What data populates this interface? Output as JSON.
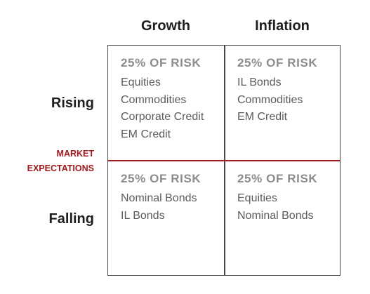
{
  "columns": {
    "growth": "Growth",
    "inflation": "Inflation"
  },
  "rows": {
    "rising": "Rising",
    "falling": "Falling"
  },
  "axis_label": {
    "line1": "MARKET",
    "line2": "EXPECTATIONS"
  },
  "cells": {
    "rising_growth": {
      "heading": "25% OF RISK",
      "items": [
        "Equities",
        "Commodities",
        "Corporate Credit",
        "EM Credit"
      ]
    },
    "rising_inflation": {
      "heading": "25% OF RISK",
      "items": [
        "IL Bonds",
        "Commodities",
        "EM Credit"
      ]
    },
    "falling_growth": {
      "heading": "25% OF RISK",
      "items": [
        "Nominal Bonds",
        "IL Bonds"
      ]
    },
    "falling_inflation": {
      "heading": "25% OF RISK",
      "items": [
        "Equities",
        "Nominal Bonds"
      ]
    }
  },
  "colors": {
    "accent": "#a3191f",
    "heading_gray": "#8c8c8c",
    "item_gray": "#5c5c5c",
    "border": "#4a4a4a"
  }
}
